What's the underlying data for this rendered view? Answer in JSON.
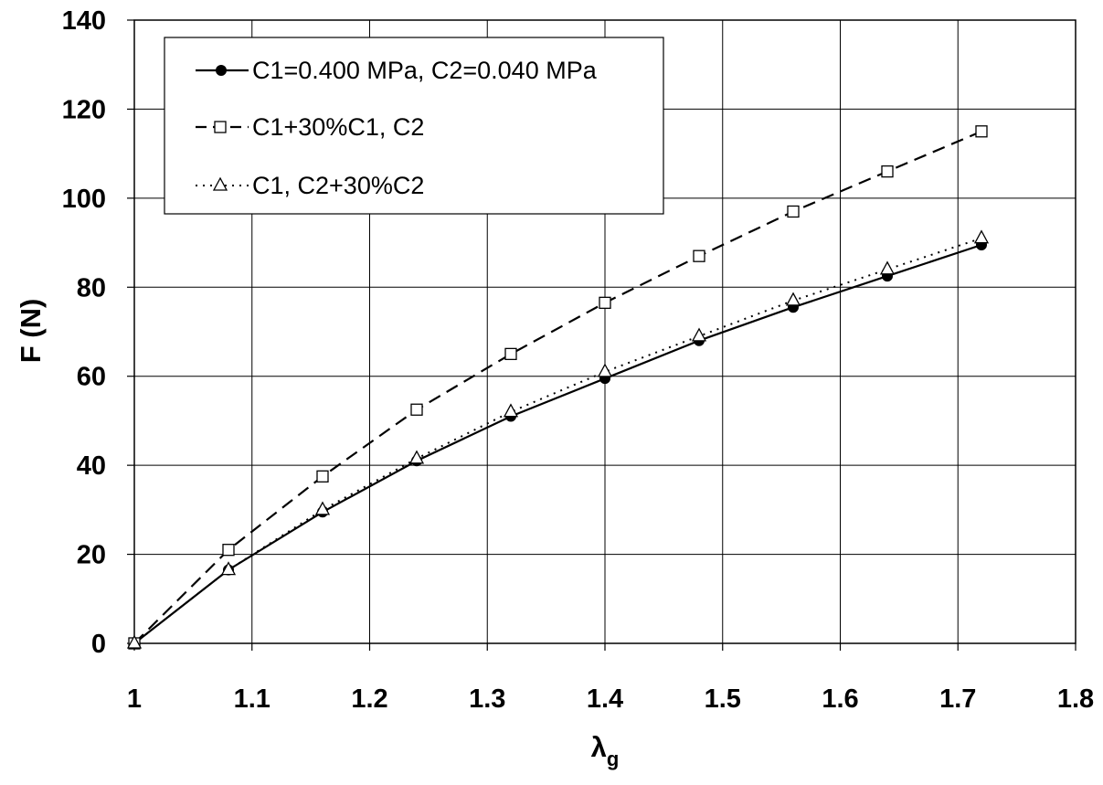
{
  "chart_data": {
    "type": "line",
    "xlabel": "λ",
    "xlabel_sub": "g",
    "ylabel": "F (N)",
    "xlim": [
      1,
      1.8
    ],
    "ylim": [
      0,
      140
    ],
    "xticks": [
      "1",
      "1.1",
      "1.2",
      "1.3",
      "1.4",
      "1.5",
      "1.6",
      "1.7",
      "1.8"
    ],
    "yticks": [
      "0",
      "20",
      "40",
      "60",
      "80",
      "100",
      "120",
      "140"
    ],
    "grid": true,
    "legend_position": "top-left",
    "x": [
      1.0,
      1.08,
      1.16,
      1.24,
      1.32,
      1.4,
      1.48,
      1.56,
      1.64,
      1.72
    ],
    "series": [
      {
        "name": "C1=0.400 MPa, C2=0.040 MPa",
        "line_style": "solid",
        "marker": "filled-circle",
        "values": [
          0,
          16.5,
          29.5,
          41,
          51,
          59.5,
          68,
          75.5,
          82.5,
          89.5
        ]
      },
      {
        "name": "C1+30%C1, C2",
        "line_style": "dashed",
        "marker": "open-square",
        "values": [
          0,
          21,
          37.5,
          52.5,
          65,
          76.5,
          87,
          97,
          106,
          115
        ]
      },
      {
        "name": "C1, C2+30%C2",
        "line_style": "dotted",
        "marker": "open-triangle",
        "values": [
          0,
          16.5,
          30,
          41.5,
          52,
          61,
          69,
          77,
          84,
          91
        ]
      }
    ]
  }
}
